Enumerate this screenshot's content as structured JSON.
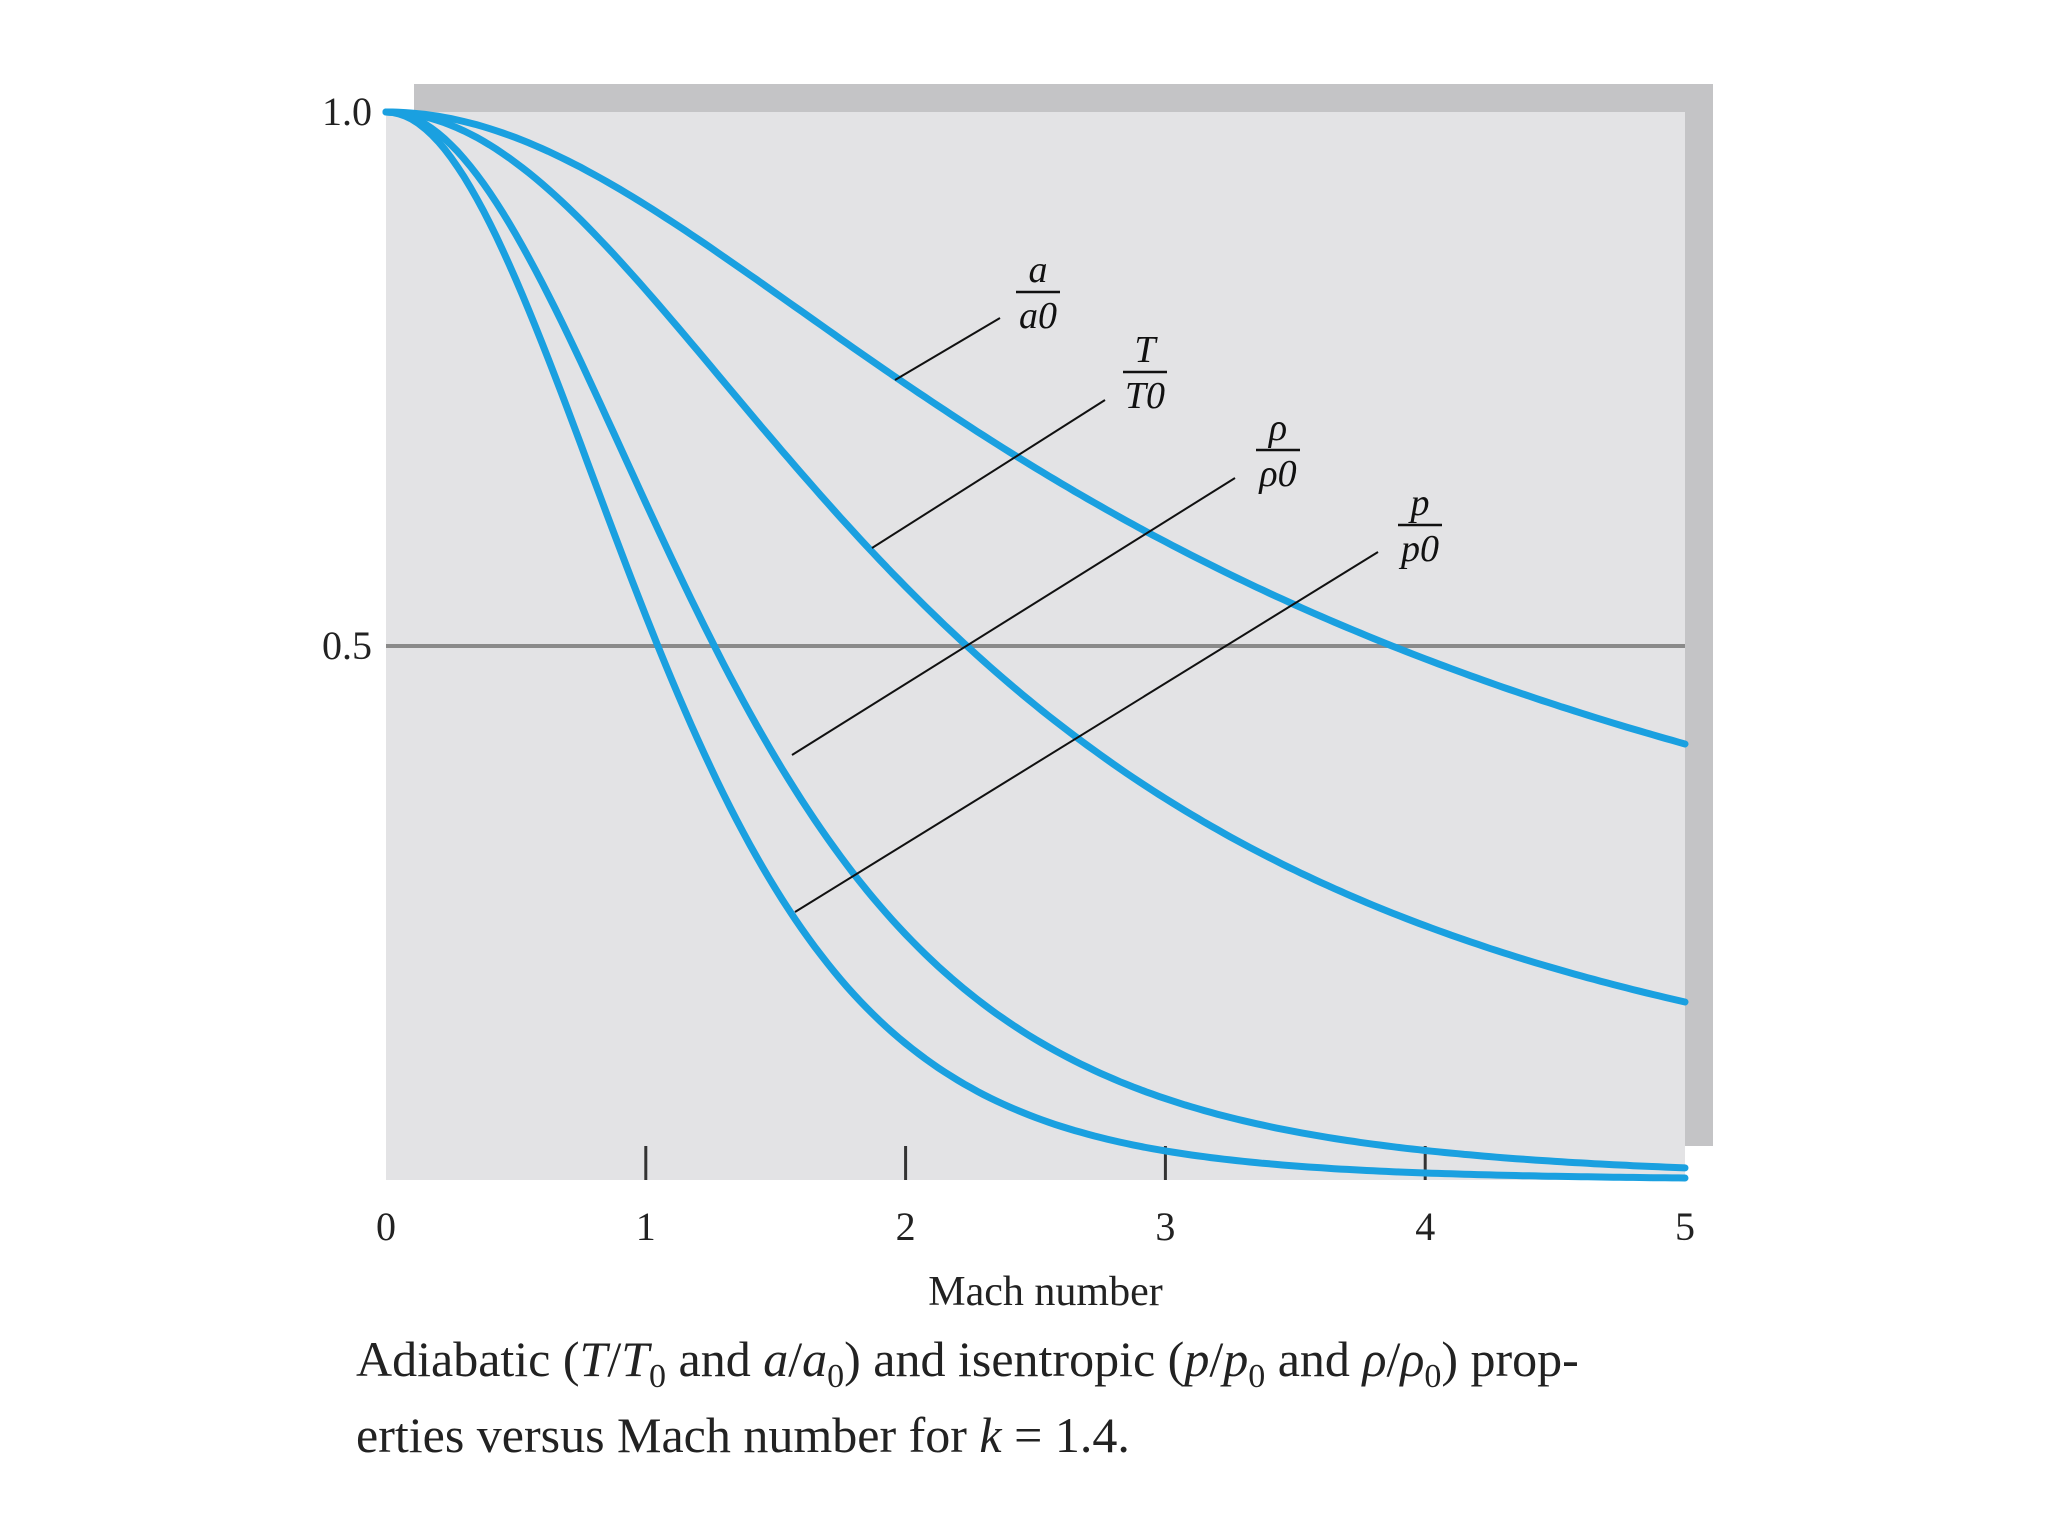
{
  "chart_data": {
    "type": "line",
    "xlabel": "Mach number",
    "x_ticks": [
      "0",
      "1",
      "2",
      "3",
      "4",
      "5"
    ],
    "y_ticks": [
      "0.5",
      "1.0"
    ],
    "xlim": [
      0,
      5
    ],
    "ylim": [
      0,
      1.0
    ],
    "reference_line": 0.5,
    "k": 1.4,
    "line_color": "#1aa0e0",
    "series": [
      {
        "name": "a/a0",
        "label_num": "a",
        "label_den": "a0",
        "x": [
          0,
          0.5,
          1.0,
          1.5,
          2.0,
          2.5,
          3.0,
          3.5,
          4.0,
          4.5,
          5.0
        ],
        "values": [
          1.0,
          0.976,
          0.913,
          0.83,
          0.745,
          0.667,
          0.598,
          0.538,
          0.488,
          0.444,
          0.408
        ]
      },
      {
        "name": "T/T0",
        "label_num": "T",
        "label_den": "T0",
        "x": [
          0,
          0.5,
          1.0,
          1.5,
          2.0,
          2.5,
          3.0,
          3.5,
          4.0,
          4.5,
          5.0
        ],
        "values": [
          1.0,
          0.952,
          0.833,
          0.69,
          0.556,
          0.444,
          0.357,
          0.29,
          0.238,
          0.198,
          0.167
        ]
      },
      {
        "name": "ρ/ρ0",
        "label_num": "ρ",
        "label_den": "ρ0",
        "x": [
          0,
          0.5,
          1.0,
          1.5,
          2.0,
          2.5,
          3.0,
          3.5,
          4.0,
          4.5,
          5.0
        ],
        "values": [
          1.0,
          0.885,
          0.634,
          0.395,
          0.23,
          0.132,
          0.076,
          0.045,
          0.028,
          0.018,
          0.011
        ]
      },
      {
        "name": "p/p0",
        "label_num": "p",
        "label_den": "p0",
        "x": [
          0,
          0.5,
          1.0,
          1.5,
          2.0,
          2.5,
          3.0,
          3.5,
          4.0,
          4.5,
          5.0
        ],
        "values": [
          1.0,
          0.843,
          0.528,
          0.272,
          0.128,
          0.059,
          0.027,
          0.013,
          0.007,
          0.004,
          0.002
        ]
      }
    ]
  },
  "caption": {
    "line1_a": "Adiabatic (",
    "line1_b": "T",
    "line1_c": "/",
    "line1_d": "T",
    "line1_e": "0",
    "line1_f": " and ",
    "line1_g": "a",
    "line1_h": "/",
    "line1_i": "a",
    "line1_j": "0",
    "line1_k": ") and isentropic (",
    "line1_l": "p",
    "line1_m": "/",
    "line1_n": "p",
    "line1_o": "0",
    "line1_p": " and ",
    "line1_q": "ρ",
    "line1_r": "/",
    "line1_s": "ρ",
    "line1_t": "0",
    "line1_u": ") prop-",
    "line2_a": "erties versus Mach number for ",
    "line2_b": "k",
    "line2_c": " = 1.4."
  }
}
